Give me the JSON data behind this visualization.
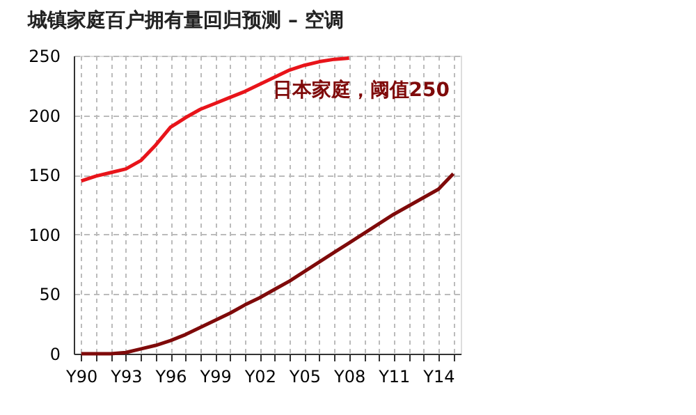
{
  "chart_data": {
    "type": "line",
    "title": "城镇家庭百户拥有量回归预测 – 空调",
    "categories": [
      "Y90",
      null,
      null,
      "Y93",
      null,
      null,
      "Y96",
      null,
      null,
      "Y99",
      null,
      null,
      "Y02",
      null,
      null,
      "Y05",
      null,
      null,
      "Y08",
      null,
      null,
      "Y11",
      null,
      null,
      "Y14",
      null
    ],
    "series": [
      {
        "color": "#e8141a",
        "values": [
          145,
          149,
          152,
          155,
          162,
          175,
          190,
          198,
          205,
          210,
          215,
          220,
          226,
          232,
          238,
          242,
          245,
          247,
          248,
          null,
          null,
          null,
          null,
          null,
          null,
          null
        ]
      },
      {
        "color": "#7f0a0a",
        "values": [
          0,
          0,
          0,
          1,
          4,
          7,
          11,
          16,
          22,
          28,
          34,
          41,
          47,
          54,
          61,
          69,
          77,
          85,
          93,
          101,
          109,
          117,
          124,
          131,
          138,
          151
        ]
      }
    ],
    "ylim": [
      0,
      250
    ],
    "yticks": [
      0,
      50,
      100,
      150,
      200,
      250
    ],
    "grid": true,
    "annotations": [
      "日本家庭，阈值250"
    ]
  }
}
